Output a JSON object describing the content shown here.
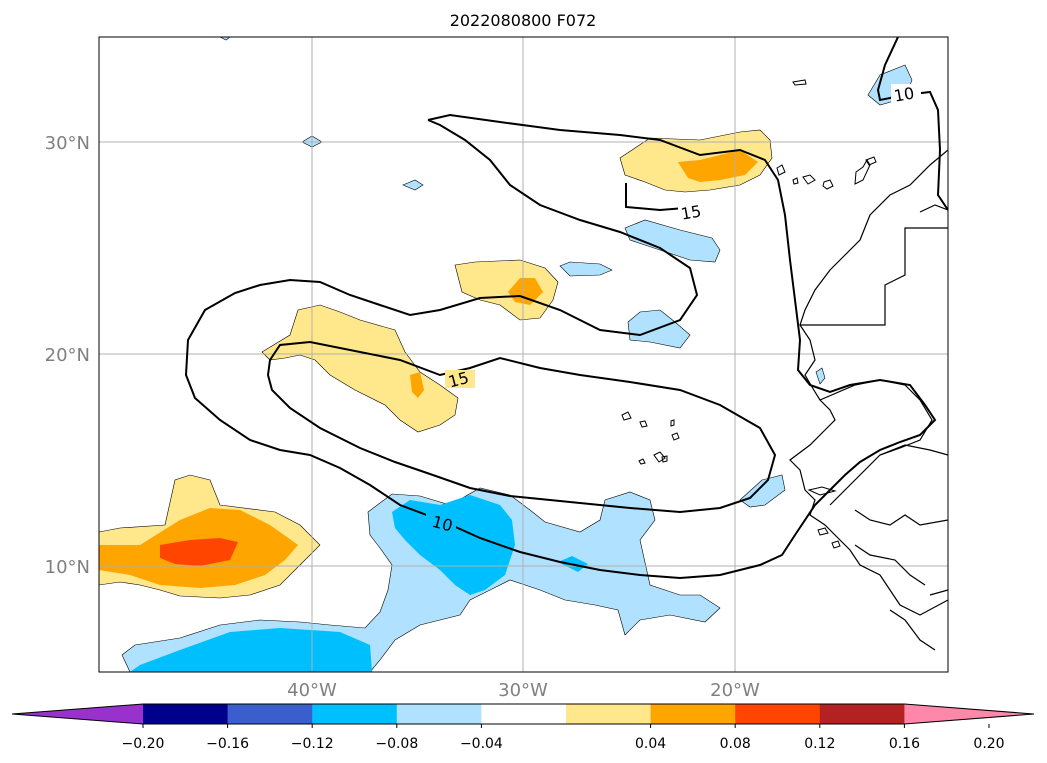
{
  "title": "2022080800 F072",
  "lat_labels": [
    "30°N",
    "20°N",
    "10°N"
  ],
  "lon_labels": [
    "40°W",
    "30°W",
    "20°W"
  ],
  "contour_labels": [
    "15",
    "15",
    "10",
    "10"
  ],
  "colorbar": {
    "ticks": [
      "−0.20",
      "−0.16",
      "−0.12",
      "−0.08",
      "−0.04",
      "0.04",
      "0.08",
      "0.12",
      "0.16",
      "0.20"
    ],
    "colors": [
      "#9932cc",
      "#00008b",
      "#3a5fcd",
      "#00bfff",
      "#b0e2ff",
      "#ffffff",
      "#ffe88c",
      "#ffa500",
      "#ff4500",
      "#b22222",
      "#ff88aa"
    ]
  },
  "map_data": {
    "lon_range": [
      -50,
      -10
    ],
    "lat_range": [
      5,
      35
    ],
    "gridlines": true
  }
}
